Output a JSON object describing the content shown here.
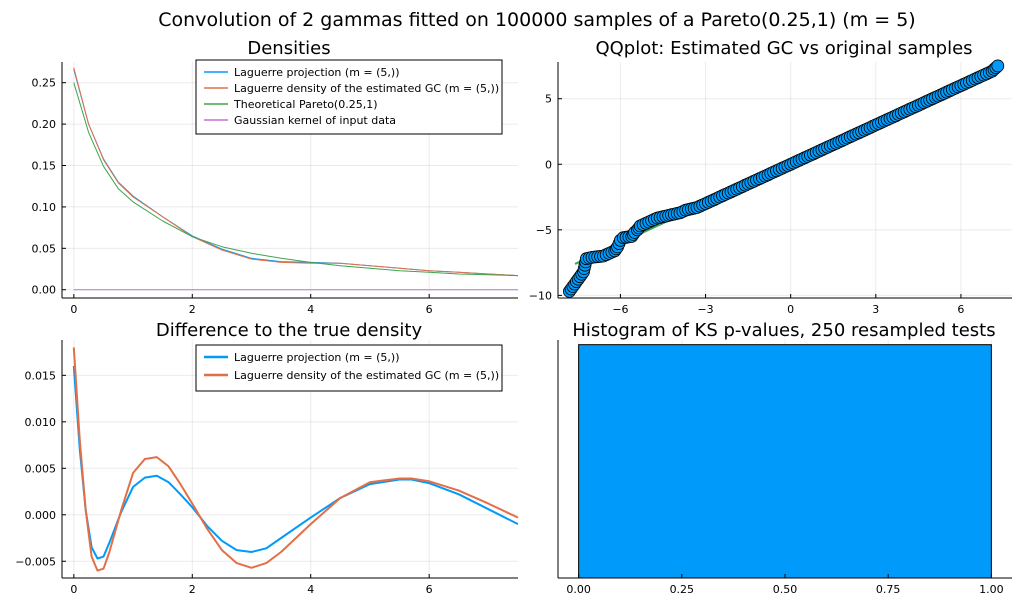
{
  "suptitle": "Convolution of 2 gammas fitted on 100000 samples of a Pareto(0.25,1) (m = 5)",
  "chart_data": [
    {
      "id": "densities",
      "type": "line",
      "title": "Densities",
      "xlim": [
        -0.2,
        7.5
      ],
      "ylim": [
        -0.01,
        0.275
      ],
      "xticks": [
        0,
        2,
        4,
        6
      ],
      "xtick_labels": [
        "0",
        "2",
        "4",
        "6"
      ],
      "yticks": [
        0,
        0.05,
        0.1,
        0.15,
        0.2,
        0.25
      ],
      "ytick_labels": [
        "0.00",
        "0.05",
        "0.10",
        "0.15",
        "0.20",
        "0.25"
      ],
      "grid": true,
      "legend_position": "top-right",
      "series": [
        {
          "name": "Laguerre projection (m = (5,))",
          "color": "#009AFA",
          "x": [
            0,
            0.25,
            0.5,
            0.75,
            1.0,
            1.5,
            2.0,
            2.5,
            3.0,
            3.5,
            4.0,
            4.5,
            5.0,
            5.5,
            6.0,
            6.5,
            7.0,
            7.5
          ],
          "y": [
            0.266,
            0.2,
            0.158,
            0.13,
            0.113,
            0.088,
            0.065,
            0.049,
            0.038,
            0.034,
            0.033,
            0.032,
            0.029,
            0.026,
            0.023,
            0.021,
            0.019,
            0.017
          ]
        },
        {
          "name": "Laguerre density of the estimated GC (m = (5,))",
          "color": "#E36F47",
          "x": [
            0,
            0.25,
            0.5,
            0.75,
            1.0,
            1.5,
            2.0,
            2.5,
            3.0,
            3.5,
            4.0,
            4.5,
            5.0,
            5.5,
            6.0,
            6.5,
            7.0,
            7.5
          ],
          "y": [
            0.268,
            0.2,
            0.157,
            0.129,
            0.112,
            0.088,
            0.064,
            0.048,
            0.037,
            0.033,
            0.032,
            0.032,
            0.029,
            0.026,
            0.023,
            0.021,
            0.019,
            0.017
          ]
        },
        {
          "name": "Theoretical Pareto(0.25,1)",
          "color": "#3EA44E",
          "x": [
            0,
            0.25,
            0.5,
            0.75,
            1.0,
            1.5,
            2.0,
            2.5,
            3.0,
            3.5,
            4.0,
            4.5,
            5.0,
            5.5,
            6.0,
            6.5,
            7.0,
            7.5
          ],
          "y": [
            0.25,
            0.19,
            0.149,
            0.122,
            0.106,
            0.083,
            0.064,
            0.052,
            0.044,
            0.038,
            0.033,
            0.029,
            0.026,
            0.023,
            0.021,
            0.019,
            0.018,
            0.017
          ]
        },
        {
          "name": "Gaussian kernel of input data",
          "color": "#C271D2",
          "x": [
            0,
            7.5
          ],
          "y": [
            0,
            0
          ]
        }
      ]
    },
    {
      "id": "qqplot",
      "type": "scatter",
      "title": "QQplot: Estimated GC vs original samples",
      "xlim": [
        -8.2,
        7.8
      ],
      "ylim": [
        -10.2,
        7.8
      ],
      "xticks": [
        -6,
        -3,
        0,
        3,
        6
      ],
      "xtick_labels": [
        "−6",
        "−3",
        "0",
        "3",
        "6"
      ],
      "yticks": [
        -10,
        -5,
        0,
        5
      ],
      "ytick_labels": [
        "−10",
        "−5",
        "0",
        "5"
      ],
      "grid": true,
      "reference_line": {
        "color": "#3EA44E",
        "x": [
          -7.6,
          7.3
        ],
        "y": [
          -7.6,
          7.3
        ]
      },
      "marker_color": "#009AFA",
      "points": {
        "x": [
          -7.8,
          -7.3,
          -7.2,
          -7.0,
          -6.6,
          -6.2,
          -6.1,
          -6.0,
          -5.9,
          -5.6,
          -5.5,
          -5.4,
          -5.3,
          -5.1,
          -4.9,
          -4.7,
          -4.5,
          -4.3,
          -4.1,
          -3.9,
          -3.7,
          -3.5,
          -3.3,
          -3.1,
          -2.9,
          -2.6,
          -2.3,
          -2.0,
          -1.7,
          -1.4,
          -1.1,
          -0.8,
          -0.5,
          -0.2,
          0.1,
          0.4,
          0.7,
          1.0,
          1.3,
          1.6,
          1.9,
          2.2,
          2.5,
          2.8,
          3.1,
          3.4,
          3.7,
          4.0,
          4.3,
          4.6,
          4.9,
          5.2,
          5.5,
          5.8,
          6.1,
          6.4,
          6.6,
          6.8,
          6.9,
          7.1,
          7.3
        ],
        "y": [
          -9.7,
          -8.2,
          -7.2,
          -7.1,
          -7.0,
          -6.6,
          -6.3,
          -5.8,
          -5.6,
          -5.5,
          -5.2,
          -5.0,
          -4.7,
          -4.5,
          -4.3,
          -4.1,
          -4.0,
          -3.9,
          -3.8,
          -3.7,
          -3.5,
          -3.4,
          -3.3,
          -3.1,
          -2.9,
          -2.6,
          -2.3,
          -2.0,
          -1.7,
          -1.4,
          -1.1,
          -0.8,
          -0.5,
          -0.2,
          0.1,
          0.4,
          0.7,
          1.0,
          1.3,
          1.6,
          1.9,
          2.2,
          2.5,
          2.8,
          3.1,
          3.4,
          3.7,
          4.0,
          4.3,
          4.6,
          4.9,
          5.2,
          5.5,
          5.8,
          6.1,
          6.4,
          6.6,
          6.8,
          6.9,
          7.1,
          7.5
        ]
      }
    },
    {
      "id": "difference",
      "type": "line",
      "title": "Difference to the true density",
      "xlim": [
        -0.2,
        7.5
      ],
      "ylim": [
        -0.0068,
        0.0188
      ],
      "xticks": [
        0,
        2,
        4,
        6
      ],
      "xtick_labels": [
        "0",
        "2",
        "4",
        "6"
      ],
      "yticks": [
        -0.005,
        0,
        0.005,
        0.01,
        0.015
      ],
      "ytick_labels": [
        "−0.005",
        "0.000",
        "0.005",
        "0.010",
        "0.015"
      ],
      "grid": true,
      "legend_position": "top-right",
      "series": [
        {
          "name": "Laguerre projection (m = (5,))",
          "color": "#009AFA",
          "x": [
            0,
            0.1,
            0.2,
            0.3,
            0.4,
            0.5,
            0.6,
            0.8,
            1.0,
            1.2,
            1.4,
            1.6,
            1.8,
            2.0,
            2.25,
            2.5,
            2.75,
            3.0,
            3.25,
            3.5,
            4.0,
            4.5,
            5.0,
            5.5,
            5.7,
            6.0,
            6.5,
            7.0,
            7.5
          ],
          "y": [
            0.016,
            0.007,
            0.0005,
            -0.0035,
            -0.0047,
            -0.0045,
            -0.003,
            0.0003,
            0.003,
            0.004,
            0.0042,
            0.0035,
            0.0022,
            0.0008,
            -0.0012,
            -0.0028,
            -0.0038,
            -0.004,
            -0.0036,
            -0.0025,
            -0.0003,
            0.0018,
            0.0033,
            0.0038,
            0.0038,
            0.0034,
            0.0022,
            0.0006,
            -0.001
          ]
        },
        {
          "name": "Laguerre density of the estimated GC (m = (5,))",
          "color": "#E36F47",
          "x": [
            0,
            0.1,
            0.2,
            0.3,
            0.4,
            0.5,
            0.6,
            0.8,
            1.0,
            1.2,
            1.4,
            1.6,
            1.8,
            2.0,
            2.25,
            2.5,
            2.75,
            3.0,
            3.25,
            3.5,
            4.0,
            4.5,
            5.0,
            5.5,
            5.7,
            6.0,
            6.5,
            7.0,
            7.5
          ],
          "y": [
            0.018,
            0.008,
            0.0005,
            -0.0045,
            -0.006,
            -0.0058,
            -0.004,
            0.0005,
            0.0045,
            0.006,
            0.0062,
            0.0052,
            0.0033,
            0.0012,
            -0.0015,
            -0.0038,
            -0.0052,
            -0.0057,
            -0.0052,
            -0.004,
            -0.001,
            0.0018,
            0.0035,
            0.0039,
            0.0039,
            0.0036,
            0.0026,
            0.0012,
            -0.0003
          ]
        }
      ]
    },
    {
      "id": "histogram",
      "type": "bar",
      "title": "Histogram of KS p-values, 250 resampled tests",
      "xlim": [
        -0.05,
        1.05
      ],
      "ylim": [
        0,
        1.02
      ],
      "xticks": [
        0,
        0.25,
        0.5,
        0.75,
        1.0
      ],
      "xtick_labels": [
        "0.00",
        "0.25",
        "0.50",
        "0.75",
        "1.00"
      ],
      "grid": true,
      "bins": [
        {
          "from": 0,
          "to": 1,
          "value": 1
        }
      ],
      "color": "#009AFA"
    }
  ]
}
